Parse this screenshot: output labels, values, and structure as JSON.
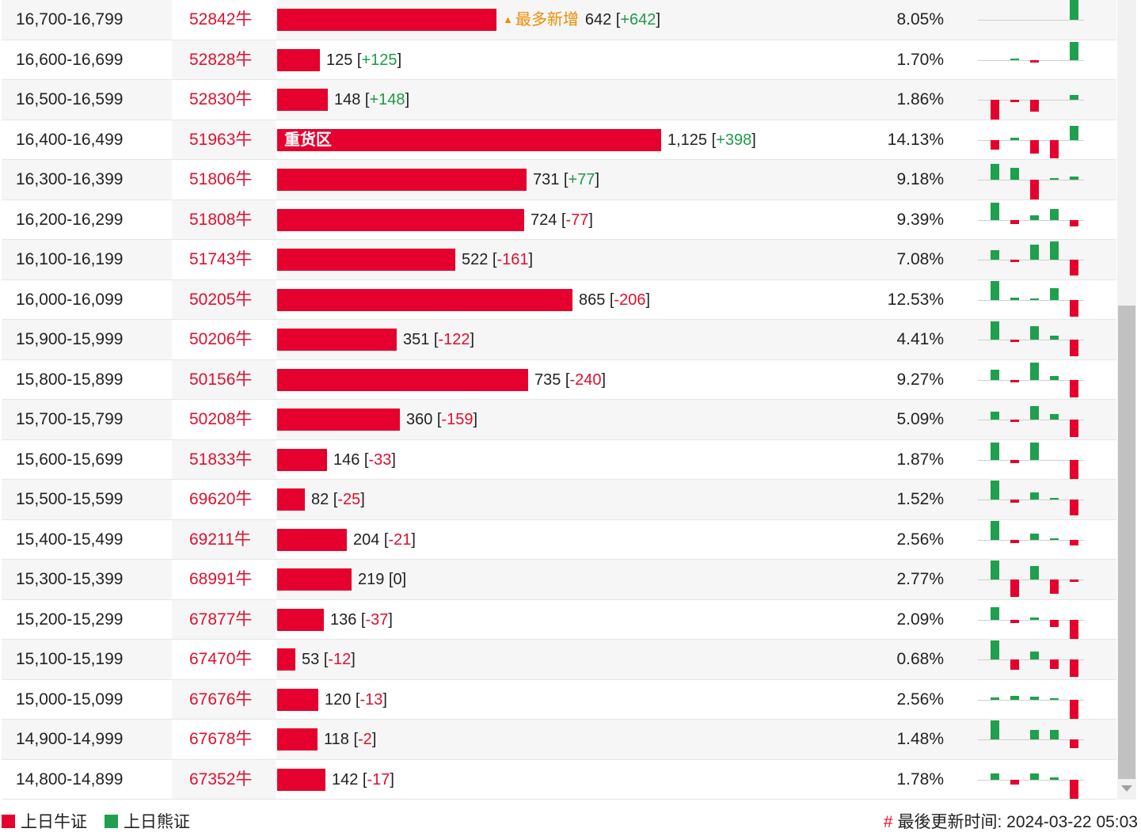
{
  "colors": {
    "bull_red": "#e5002d",
    "bear_green": "#1fa04e",
    "text_red": "#e0102f",
    "text_green": "#1f9a4a",
    "tag_orange": "#f08c00"
  },
  "rows": [
    {
      "range": "16,700-16,799",
      "code": "52842牛",
      "bar_value": 642,
      "bar_label": "",
      "tag": "最多新增",
      "value": "642",
      "change": "+642",
      "pct": "8.05%",
      "spark": [
        0,
        0,
        0,
        0,
        50
      ]
    },
    {
      "range": "16,600-16,699",
      "code": "52828牛",
      "bar_value": 125,
      "bar_label": "",
      "tag": "",
      "value": "125",
      "change": "+125",
      "pct": "1.70%",
      "spark": [
        0,
        3,
        -6,
        0,
        46
      ]
    },
    {
      "range": "16,500-16,599",
      "code": "52830牛",
      "bar_value": 148,
      "bar_label": "",
      "tag": "",
      "value": "148",
      "change": "+148",
      "pct": "1.86%",
      "spark": [
        -50,
        -5,
        -30,
        0,
        11
      ]
    },
    {
      "range": "16,400-16,499",
      "code": "51963牛",
      "bar_value": 1125,
      "bar_label": "重货区",
      "tag": "",
      "value": "1,125",
      "change": "+398",
      "pct": "14.13%",
      "spark": [
        -24,
        6,
        -34,
        -46,
        36
      ]
    },
    {
      "range": "16,300-16,399",
      "code": "51806牛",
      "bar_value": 731,
      "bar_label": "",
      "tag": "",
      "value": "731",
      "change": "+77",
      "pct": "9.18%",
      "spark": [
        40,
        30,
        -50,
        3,
        7
      ]
    },
    {
      "range": "16,200-16,299",
      "code": "51808牛",
      "bar_value": 724,
      "bar_label": "",
      "tag": "",
      "value": "724",
      "change": "-77",
      "pct": "9.39%",
      "spark": [
        44,
        -10,
        12,
        28,
        -16
      ]
    },
    {
      "range": "16,100-16,199",
      "code": "51743牛",
      "bar_value": 522,
      "bar_label": "",
      "tag": "",
      "value": "522",
      "change": "-161",
      "pct": "7.08%",
      "spark": [
        24,
        -6,
        38,
        46,
        -40
      ]
    },
    {
      "range": "16,000-16,099",
      "code": "50205牛",
      "bar_value": 865,
      "bar_label": "",
      "tag": "",
      "value": "865",
      "change": "-206",
      "pct": "12.53%",
      "spark": [
        48,
        5,
        3,
        30,
        -42
      ]
    },
    {
      "range": "15,900-15,999",
      "code": "50206牛",
      "bar_value": 351,
      "bar_label": "",
      "tag": "",
      "value": "351",
      "change": "-122",
      "pct": "4.41%",
      "spark": [
        46,
        -6,
        34,
        10,
        -42
      ]
    },
    {
      "range": "15,800-15,899",
      "code": "50156牛",
      "bar_value": 735,
      "bar_label": "",
      "tag": "",
      "value": "735",
      "change": "-240",
      "pct": "9.27%",
      "spark": [
        26,
        -6,
        44,
        10,
        -44
      ]
    },
    {
      "range": "15,700-15,799",
      "code": "50208牛",
      "bar_value": 360,
      "bar_label": "",
      "tag": "",
      "value": "360",
      "change": "-159",
      "pct": "5.09%",
      "spark": [
        20,
        -6,
        34,
        14,
        -44
      ]
    },
    {
      "range": "15,600-15,699",
      "code": "51833牛",
      "bar_value": 146,
      "bar_label": "",
      "tag": "",
      "value": "146",
      "change": "-33",
      "pct": "1.87%",
      "spark": [
        44,
        -8,
        44,
        0,
        -48
      ]
    },
    {
      "range": "15,500-15,599",
      "code": "69620牛",
      "bar_value": 82,
      "bar_label": "",
      "tag": "",
      "value": "82",
      "change": "-25",
      "pct": "1.52%",
      "spark": [
        48,
        -8,
        18,
        3,
        -40
      ]
    },
    {
      "range": "15,400-15,499",
      "code": "69211牛",
      "bar_value": 204,
      "bar_label": "",
      "tag": "",
      "value": "204",
      "change": "-21",
      "pct": "2.56%",
      "spark": [
        48,
        -8,
        16,
        2,
        -14
      ]
    },
    {
      "range": "15,300-15,399",
      "code": "68991牛",
      "bar_value": 219,
      "bar_label": "",
      "tag": "",
      "value": "219",
      "change": "0",
      "pct": "2.77%",
      "spark": [
        48,
        -44,
        34,
        -36,
        -5
      ]
    },
    {
      "range": "15,200-15,299",
      "code": "67877牛",
      "bar_value": 136,
      "bar_label": "",
      "tag": "",
      "value": "136",
      "change": "-37",
      "pct": "2.09%",
      "spark": [
        32,
        -8,
        6,
        -18,
        -48
      ]
    },
    {
      "range": "15,100-15,199",
      "code": "67470牛",
      "bar_value": 53,
      "bar_label": "",
      "tag": "",
      "value": "53",
      "change": "-12",
      "pct": "0.68%",
      "spark": [
        48,
        -26,
        20,
        -24,
        -44
      ]
    },
    {
      "range": "15,000-15,099",
      "code": "67676牛",
      "bar_value": 120,
      "bar_label": "",
      "tag": "",
      "value": "120",
      "change": "-13",
      "pct": "2.56%",
      "spark": [
        6,
        10,
        8,
        4,
        -48
      ]
    },
    {
      "range": "14,900-14,999",
      "code": "67678牛",
      "bar_value": 118,
      "bar_label": "",
      "tag": "",
      "value": "118",
      "change": "-2",
      "pct": "1.48%",
      "spark": [
        48,
        0,
        24,
        24,
        -22
      ]
    },
    {
      "range": "14,800-14,899",
      "code": "67352牛",
      "bar_value": 142,
      "bar_label": "",
      "tag": "",
      "value": "142",
      "change": "-17",
      "pct": "1.78%",
      "spark": [
        16,
        -12,
        16,
        5,
        -48
      ]
    }
  ],
  "legend": {
    "bull": "上日牛证",
    "bear": "上日熊证"
  },
  "footer": {
    "hash": "#",
    "updated": "最後更新时间: 2024-03-22 05:03"
  }
}
